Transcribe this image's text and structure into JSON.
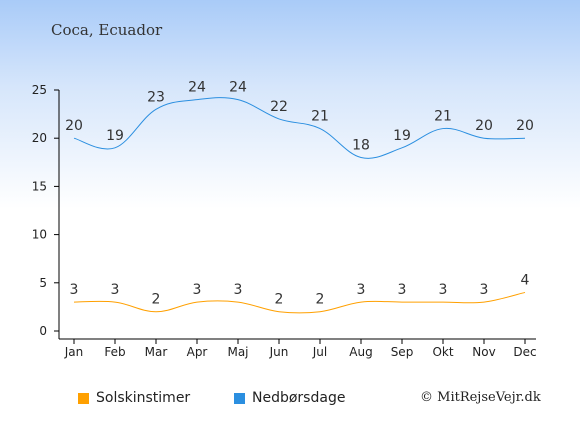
{
  "chart_data": {
    "type": "line",
    "title": "Coca, Ecuador",
    "categories": [
      "Jan",
      "Feb",
      "Mar",
      "Apr",
      "Maj",
      "Jun",
      "Jul",
      "Aug",
      "Sep",
      "Okt",
      "Nov",
      "Dec"
    ],
    "series": [
      {
        "name": "Solskinstimer",
        "color": "#ffa000",
        "values": [
          3,
          3,
          2,
          3,
          3,
          2,
          2,
          3,
          3,
          3,
          3,
          4
        ]
      },
      {
        "name": "Nedbørsdage",
        "color": "#2b8fe0",
        "values": [
          20,
          19,
          23,
          24,
          24,
          22,
          21,
          18,
          19,
          21,
          20,
          20
        ]
      }
    ],
    "ylim": [
      0,
      25
    ],
    "yticks": [
      0,
      5,
      10,
      15,
      20,
      25
    ],
    "grid": false,
    "legend_position": "bottom-left"
  },
  "credit": "© MitRejseVejr.dk"
}
